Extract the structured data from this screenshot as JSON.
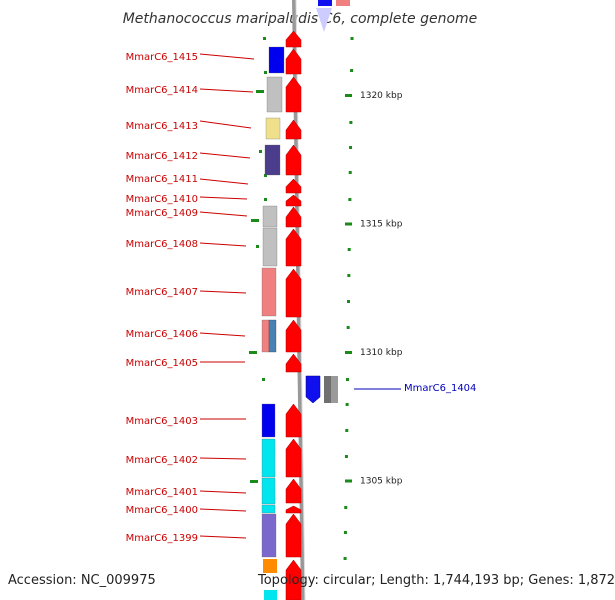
{
  "title": "Methanococcus maripaludis C6, complete genome",
  "footer": {
    "accession": "Accession: NC_009975",
    "topology": "Topology: circular; Length: 1,744,193 bp; Genes: 1,872"
  },
  "colors": {
    "left_label": "#cc0000",
    "right_label": "#0000bb",
    "arrow": "#ff0000",
    "backbone": "#999999",
    "tick": "#1a8a1a"
  },
  "scale_ticks": [
    {
      "label": "1320 kbp",
      "kbp": 1320
    },
    {
      "label": "1315 kbp",
      "kbp": 1315
    },
    {
      "label": "1310 kbp",
      "kbp": 1310
    },
    {
      "label": "1305 kbp",
      "kbp": 1305
    }
  ],
  "genes_left": [
    {
      "name": "MmarC6_1415",
      "category_color": "#0000ee"
    },
    {
      "name": "MmarC6_1414",
      "category_color": "#c0c0c0"
    },
    {
      "name": "MmarC6_1413",
      "category_color": "#f0e08c"
    },
    {
      "name": "MmarC6_1412",
      "category_color": "#4b3c8c"
    },
    {
      "name": "MmarC6_1411",
      "category_color": ""
    },
    {
      "name": "MmarC6_1410",
      "category_color": ""
    },
    {
      "name": "MmarC6_1409",
      "category_color": "#c0c0c0"
    },
    {
      "name": "MmarC6_1408",
      "category_color": "#c0c0c0"
    },
    {
      "name": "MmarC6_1407",
      "category_color": "#f08080"
    },
    {
      "name": "MmarC6_1406",
      "category_color": "#f08080"
    },
    {
      "name": "MmarC6_1405",
      "category_color": ""
    },
    {
      "name": "MmarC6_1403",
      "category_color": "#0000ee"
    },
    {
      "name": "MmarC6_1402",
      "category_color": "#00e5ee"
    },
    {
      "name": "MmarC6_1401",
      "category_color": "#00e5ee"
    },
    {
      "name": "MmarC6_1400",
      "category_color": "#00e5ee"
    },
    {
      "name": "MmarC6_1399",
      "category_color": "#7b68cc"
    }
  ],
  "genes_right": [
    {
      "name": "MmarC6_1404",
      "category_colors": [
        "#0000ee",
        "#707070"
      ]
    }
  ]
}
